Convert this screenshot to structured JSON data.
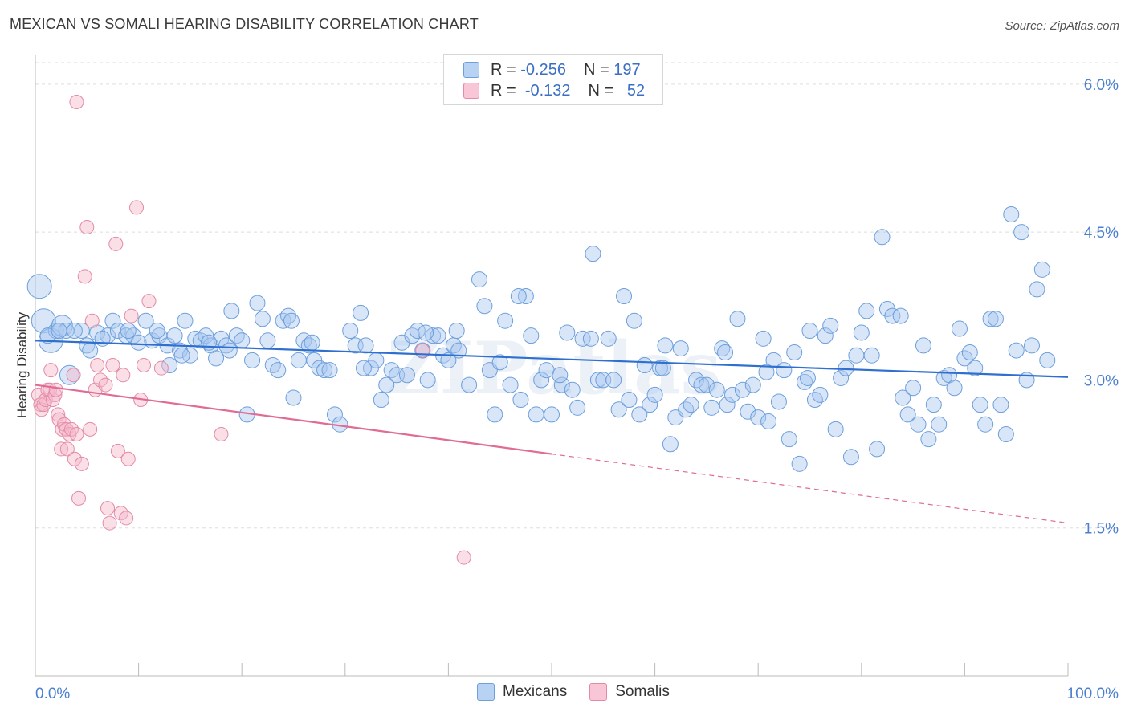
{
  "title": "MEXICAN VS SOMALI HEARING DISABILITY CORRELATION CHART",
  "source": "Source: ZipAtlas.com",
  "watermark": "ZIPatlas",
  "colors": {
    "blue_fill": "#a9c8f0",
    "blue_stroke": "#6d9fdc",
    "blue_line": "#2f6fcf",
    "pink_fill": "#f5b8ca",
    "pink_stroke": "#e48aa6",
    "pink_line": "#e06b95",
    "grid": "#dddddd",
    "tick_label": "#4a7fd0"
  },
  "legend_top": [
    {
      "r_label": "R =",
      "r_value": "-0.256",
      "n_label": "N =",
      "n_value": "197"
    },
    {
      "r_label": "R =",
      "r_value": "-0.132",
      "n_label": "N =",
      "n_value": "52"
    }
  ],
  "chart_data": {
    "type": "scatter",
    "title": "MEXICAN VS SOMALI HEARING DISABILITY CORRELATION CHART",
    "xlabel": "",
    "ylabel": "Hearing Disability",
    "xlim": [
      0,
      100
    ],
    "ylim": [
      0.0,
      6.3
    ],
    "x_tick_labels": [
      "0.0%",
      "100.0%"
    ],
    "y_ticks": [
      1.5,
      3.0,
      4.5,
      6.0
    ],
    "y_tick_labels": [
      "1.5%",
      "3.0%",
      "4.5%",
      "6.0%"
    ],
    "grid": true,
    "legend_position": "bottom",
    "series": [
      {
        "name": "Mexicans",
        "r": -0.256,
        "n": 197,
        "trend": {
          "x0": 0,
          "y0": 3.4,
          "x1": 100,
          "y1": 3.03
        },
        "points": [
          [
            0.4,
            3.95
          ],
          [
            0.8,
            3.6
          ],
          [
            1.5,
            3.4
          ],
          [
            2.0,
            3.5
          ],
          [
            2.6,
            3.55
          ],
          [
            3.0,
            3.5
          ],
          [
            3.3,
            3.05
          ],
          [
            4.5,
            3.5
          ],
          [
            5.0,
            3.35
          ],
          [
            5.3,
            3.3
          ],
          [
            6.0,
            3.48
          ],
          [
            7.0,
            3.45
          ],
          [
            7.5,
            3.6
          ],
          [
            8.0,
            3.5
          ],
          [
            8.8,
            3.45
          ],
          [
            9.5,
            3.45
          ],
          [
            10.0,
            3.38
          ],
          [
            10.7,
            3.6
          ],
          [
            11.3,
            3.4
          ],
          [
            12.0,
            3.45
          ],
          [
            12.8,
            3.35
          ],
          [
            13.0,
            3.15
          ],
          [
            13.5,
            3.45
          ],
          [
            14.0,
            3.3
          ],
          [
            14.5,
            3.6
          ],
          [
            15.0,
            3.25
          ],
          [
            15.5,
            3.42
          ],
          [
            16.0,
            3.4
          ],
          [
            16.5,
            3.45
          ],
          [
            17.0,
            3.35
          ],
          [
            17.5,
            3.22
          ],
          [
            18.0,
            3.42
          ],
          [
            18.5,
            3.35
          ],
          [
            19.0,
            3.7
          ],
          [
            19.5,
            3.45
          ],
          [
            20.0,
            3.4
          ],
          [
            20.5,
            2.65
          ],
          [
            21.0,
            3.2
          ],
          [
            21.5,
            3.78
          ],
          [
            22.0,
            3.62
          ],
          [
            22.5,
            3.4
          ],
          [
            23.0,
            3.15
          ],
          [
            23.5,
            3.1
          ],
          [
            24.0,
            3.6
          ],
          [
            24.5,
            3.65
          ],
          [
            25.0,
            2.82
          ],
          [
            25.5,
            3.2
          ],
          [
            26.0,
            3.4
          ],
          [
            26.5,
            3.35
          ],
          [
            27.0,
            3.2
          ],
          [
            27.5,
            3.12
          ],
          [
            28.0,
            3.1
          ],
          [
            28.5,
            3.1
          ],
          [
            29.0,
            2.65
          ],
          [
            29.5,
            2.55
          ],
          [
            30.5,
            3.5
          ],
          [
            31.0,
            3.35
          ],
          [
            31.5,
            3.68
          ],
          [
            32.0,
            3.35
          ],
          [
            32.5,
            3.12
          ],
          [
            33.0,
            3.2
          ],
          [
            33.5,
            2.8
          ],
          [
            34.0,
            2.95
          ],
          [
            34.5,
            3.1
          ],
          [
            35.0,
            3.05
          ],
          [
            35.5,
            3.38
          ],
          [
            36.0,
            3.05
          ],
          [
            36.5,
            3.45
          ],
          [
            37.0,
            3.5
          ],
          [
            37.5,
            3.3
          ],
          [
            38.0,
            3.0
          ],
          [
            38.5,
            3.45
          ],
          [
            39.0,
            3.45
          ],
          [
            39.5,
            3.25
          ],
          [
            40.0,
            3.2
          ],
          [
            40.5,
            3.35
          ],
          [
            41.0,
            3.3
          ],
          [
            42.0,
            2.95
          ],
          [
            43.0,
            4.02
          ],
          [
            43.5,
            3.75
          ],
          [
            44.0,
            3.1
          ],
          [
            44.5,
            2.65
          ],
          [
            45.0,
            3.18
          ],
          [
            45.5,
            3.6
          ],
          [
            46.0,
            2.95
          ],
          [
            47.0,
            2.8
          ],
          [
            47.5,
            3.85
          ],
          [
            48.0,
            3.45
          ],
          [
            48.5,
            2.65
          ],
          [
            49.0,
            3.0
          ],
          [
            49.5,
            3.1
          ],
          [
            50.0,
            2.65
          ],
          [
            51.0,
            2.95
          ],
          [
            51.5,
            3.48
          ],
          [
            52.0,
            2.9
          ],
          [
            52.5,
            2.72
          ],
          [
            53.0,
            3.42
          ],
          [
            54.0,
            4.28
          ],
          [
            54.5,
            3.0
          ],
          [
            55.0,
            3.0
          ],
          [
            55.5,
            3.42
          ],
          [
            56.0,
            3.0
          ],
          [
            56.5,
            2.7
          ],
          [
            57.0,
            3.85
          ],
          [
            57.5,
            2.8
          ],
          [
            58.0,
            3.6
          ],
          [
            58.5,
            2.65
          ],
          [
            59.0,
            3.15
          ],
          [
            59.5,
            2.75
          ],
          [
            60.0,
            2.85
          ],
          [
            60.5,
            3.12
          ],
          [
            61.0,
            3.35
          ],
          [
            61.5,
            2.35
          ],
          [
            62.0,
            2.62
          ],
          [
            62.5,
            3.32
          ],
          [
            63.0,
            2.7
          ],
          [
            63.5,
            2.75
          ],
          [
            64.0,
            3.0
          ],
          [
            64.5,
            2.95
          ],
          [
            65.0,
            2.95
          ],
          [
            65.5,
            2.72
          ],
          [
            66.0,
            2.9
          ],
          [
            66.5,
            3.32
          ],
          [
            67.0,
            2.75
          ],
          [
            67.5,
            2.85
          ],
          [
            68.0,
            3.62
          ],
          [
            68.5,
            2.9
          ],
          [
            69.0,
            2.68
          ],
          [
            69.5,
            2.95
          ],
          [
            70.0,
            2.62
          ],
          [
            70.5,
            3.42
          ],
          [
            71.0,
            2.58
          ],
          [
            71.5,
            3.2
          ],
          [
            72.0,
            2.78
          ],
          [
            72.5,
            3.1
          ],
          [
            73.0,
            2.4
          ],
          [
            73.5,
            3.28
          ],
          [
            74.0,
            2.15
          ],
          [
            74.5,
            2.98
          ],
          [
            75.0,
            3.5
          ],
          [
            75.5,
            2.8
          ],
          [
            76.0,
            2.85
          ],
          [
            76.5,
            3.45
          ],
          [
            77.0,
            3.55
          ],
          [
            77.5,
            2.5
          ],
          [
            78.0,
            3.02
          ],
          [
            78.5,
            3.12
          ],
          [
            79.0,
            2.22
          ],
          [
            79.5,
            3.25
          ],
          [
            80.0,
            3.48
          ],
          [
            80.5,
            3.7
          ],
          [
            81.0,
            3.25
          ],
          [
            81.5,
            2.3
          ],
          [
            82.0,
            4.45
          ],
          [
            82.5,
            3.72
          ],
          [
            83.0,
            3.65
          ],
          [
            84.0,
            2.82
          ],
          [
            84.5,
            2.65
          ],
          [
            85.0,
            2.92
          ],
          [
            85.5,
            2.55
          ],
          [
            86.0,
            3.35
          ],
          [
            86.5,
            2.4
          ],
          [
            87.0,
            2.75
          ],
          [
            87.5,
            2.55
          ],
          [
            88.0,
            3.02
          ],
          [
            88.5,
            3.05
          ],
          [
            89.0,
            2.92
          ],
          [
            89.5,
            3.52
          ],
          [
            90.0,
            3.22
          ],
          [
            90.5,
            3.28
          ],
          [
            91.0,
            3.12
          ],
          [
            91.5,
            2.75
          ],
          [
            92.0,
            2.55
          ],
          [
            92.5,
            3.62
          ],
          [
            93.0,
            3.62
          ],
          [
            93.5,
            2.75
          ],
          [
            94.0,
            2.45
          ],
          [
            94.5,
            4.68
          ],
          [
            95.0,
            3.3
          ],
          [
            95.5,
            4.5
          ],
          [
            96.0,
            3.0
          ],
          [
            96.5,
            3.35
          ],
          [
            97.0,
            3.92
          ],
          [
            97.5,
            4.12
          ],
          [
            98.0,
            3.2
          ],
          [
            1.2,
            3.45
          ],
          [
            2.3,
            3.5
          ],
          [
            3.8,
            3.5
          ],
          [
            6.5,
            3.42
          ],
          [
            9.0,
            3.5
          ],
          [
            11.8,
            3.5
          ],
          [
            14.2,
            3.25
          ],
          [
            16.8,
            3.38
          ],
          [
            18.8,
            3.3
          ],
          [
            24.8,
            3.6
          ],
          [
            26.8,
            3.38
          ],
          [
            31.8,
            3.12
          ],
          [
            37.8,
            3.48
          ],
          [
            40.8,
            3.5
          ],
          [
            46.8,
            3.85
          ],
          [
            50.8,
            3.05
          ],
          [
            53.8,
            3.42
          ],
          [
            60.8,
            3.12
          ],
          [
            66.8,
            3.28
          ],
          [
            70.8,
            3.08
          ],
          [
            74.8,
            3.02
          ],
          [
            83.8,
            3.65
          ]
        ],
        "sizes": [
          [
            0.4,
            3.95,
            15
          ],
          [
            0.8,
            3.6,
            15
          ],
          [
            1.5,
            3.4,
            15
          ],
          [
            2.6,
            3.55,
            13
          ],
          [
            3.3,
            3.05,
            12
          ]
        ]
      },
      {
        "name": "Somalis",
        "r": -0.132,
        "n": 52,
        "trend": {
          "x0": 0,
          "y0": 2.95,
          "x1": 50,
          "y1": 2.25,
          "dash_x1": 100,
          "dash_y1": 1.55
        },
        "points": [
          [
            0.3,
            2.85
          ],
          [
            0.5,
            2.75
          ],
          [
            0.6,
            2.7
          ],
          [
            0.8,
            2.75
          ],
          [
            1.0,
            2.8
          ],
          [
            1.2,
            2.9
          ],
          [
            1.4,
            2.9
          ],
          [
            1.5,
            3.1
          ],
          [
            1.7,
            2.8
          ],
          [
            1.9,
            2.85
          ],
          [
            2.0,
            2.9
          ],
          [
            2.2,
            2.65
          ],
          [
            2.3,
            2.6
          ],
          [
            2.5,
            2.3
          ],
          [
            2.6,
            2.5
          ],
          [
            2.8,
            2.55
          ],
          [
            3.0,
            2.5
          ],
          [
            3.1,
            2.3
          ],
          [
            3.3,
            2.45
          ],
          [
            3.5,
            2.5
          ],
          [
            3.7,
            3.05
          ],
          [
            3.8,
            2.2
          ],
          [
            4.0,
            2.45
          ],
          [
            4.2,
            1.8
          ],
          [
            4.5,
            2.15
          ],
          [
            4.8,
            4.05
          ],
          [
            5.0,
            4.55
          ],
          [
            5.3,
            2.5
          ],
          [
            5.5,
            3.6
          ],
          [
            5.8,
            2.9
          ],
          [
            6.0,
            3.15
          ],
          [
            6.3,
            3.0
          ],
          [
            6.8,
            2.95
          ],
          [
            7.0,
            1.7
          ],
          [
            7.2,
            1.55
          ],
          [
            7.5,
            3.15
          ],
          [
            7.8,
            4.38
          ],
          [
            8.0,
            2.28
          ],
          [
            8.3,
            1.65
          ],
          [
            8.5,
            3.05
          ],
          [
            8.8,
            1.6
          ],
          [
            9.0,
            2.2
          ],
          [
            9.3,
            3.65
          ],
          [
            9.8,
            4.75
          ],
          [
            10.2,
            2.8
          ],
          [
            10.5,
            3.15
          ],
          [
            11.0,
            3.8
          ],
          [
            12.2,
            3.12
          ],
          [
            18.0,
            2.45
          ],
          [
            37.5,
            3.3
          ],
          [
            41.5,
            1.2
          ],
          [
            4.0,
            5.82
          ]
        ]
      }
    ]
  }
}
